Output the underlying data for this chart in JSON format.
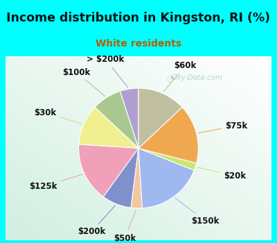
{
  "title": "Income distribution in Kingston, RI (%)",
  "subtitle": "White residents",
  "title_color": "#111111",
  "subtitle_color": "#b06000",
  "background_cyan": "#00ffff",
  "labels": [
    "> $200k",
    "$100k",
    "$30k",
    "$125k",
    "$200k",
    "$50k",
    "$150k",
    "$20k",
    "$75k",
    "$60k"
  ],
  "sizes": [
    5,
    8,
    11,
    16,
    8,
    3,
    18,
    2,
    16,
    13
  ],
  "colors": [
    "#b0a0d0",
    "#a8c890",
    "#f0f090",
    "#f0a0b8",
    "#8090cc",
    "#f0c8a0",
    "#a0b8f0",
    "#c8e870",
    "#f0a850",
    "#c0bfa0"
  ],
  "label_colors": [
    "#b0a0d0",
    "#a8c890",
    "#d8d890",
    "#f0a0b8",
    "#8090cc",
    "#d0b890",
    "#a0b8f0",
    "#c8e870",
    "#f0a850",
    "#c0bfa0"
  ],
  "label_fontsize": 8.5,
  "title_fontsize": 12.5,
  "subtitle_fontsize": 10,
  "startangle": 90,
  "watermark": "City-Data.com"
}
